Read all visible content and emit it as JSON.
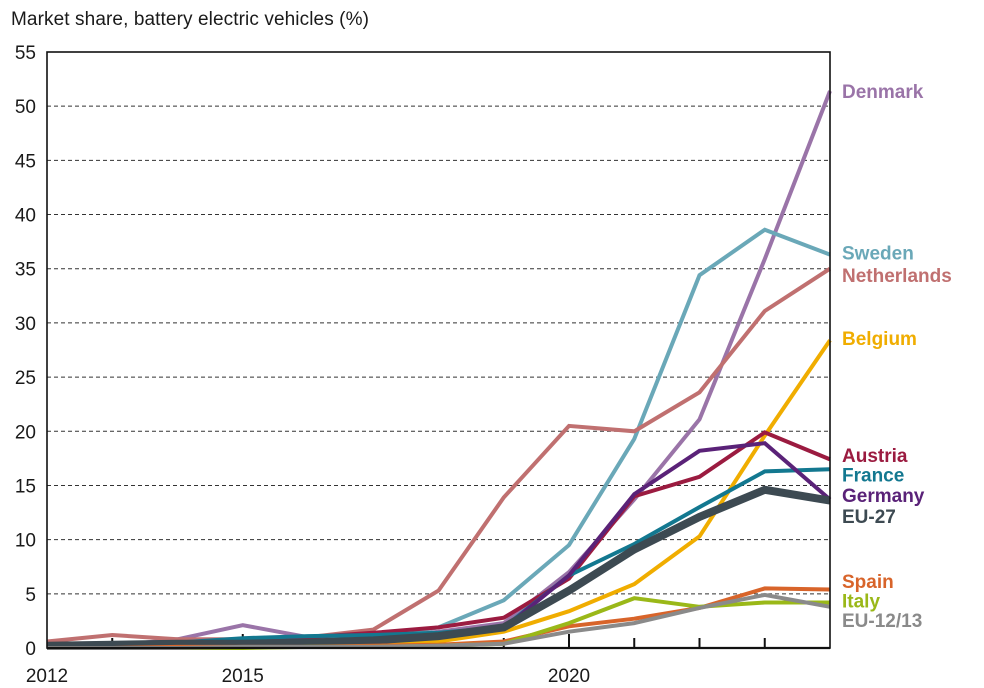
{
  "chart_data": {
    "type": "line",
    "title": "Market share, battery electric vehicles (%)",
    "xlabel": "",
    "ylabel": "",
    "xlim": [
      2012,
      2024
    ],
    "ylim": [
      0,
      55
    ],
    "grid": true,
    "yticks": [
      0,
      5,
      10,
      15,
      20,
      25,
      30,
      35,
      40,
      45,
      50,
      55
    ],
    "xticks": [
      2012,
      2013,
      2014,
      2015,
      2016,
      2017,
      2018,
      2019,
      2020,
      2021,
      2022,
      2023,
      2024
    ],
    "xtick_labels": [
      {
        "value": 2012,
        "label": "2012"
      },
      {
        "value": 2015,
        "label": "2015"
      },
      {
        "value": 2020,
        "label": "2020"
      }
    ],
    "legend_placement": "right (direct labels at line ends)",
    "x": [
      2012,
      2013,
      2014,
      2015,
      2016,
      2017,
      2018,
      2019,
      2020,
      2021,
      2022,
      2023,
      2024
    ],
    "series": [
      {
        "name": "Denmark",
        "color": "#9a74a8",
        "width": "normal",
        "values": [
          0.2,
          0.2,
          0.8,
          2.1,
          1.0,
          0.8,
          1.5,
          2.3,
          7.0,
          13.7,
          21.1,
          35.9,
          51.4
        ]
      },
      {
        "name": "Sweden",
        "color": "#6aa8b8",
        "width": "normal",
        "values": [
          0.1,
          0.2,
          0.3,
          0.8,
          0.8,
          1.0,
          1.9,
          4.4,
          9.5,
          19.3,
          34.4,
          38.6,
          36.3
        ]
      },
      {
        "name": "Netherlands",
        "color": "#c07070",
        "width": "normal",
        "values": [
          0.6,
          1.2,
          0.8,
          0.8,
          1.0,
          1.7,
          5.3,
          13.9,
          20.5,
          20.0,
          23.6,
          31.1,
          35.0
        ]
      },
      {
        "name": "Belgium",
        "color": "#f0ad00",
        "width": "normal",
        "values": [
          0.0,
          0.1,
          0.1,
          0.1,
          0.2,
          0.3,
          0.6,
          1.5,
          3.4,
          5.9,
          10.3,
          19.6,
          28.4
        ]
      },
      {
        "name": "Austria",
        "color": "#9b1b40",
        "width": "normal",
        "values": [
          0.1,
          0.1,
          0.3,
          0.5,
          1.0,
          1.4,
          1.9,
          2.8,
          6.4,
          14.0,
          15.8,
          19.9,
          17.4
        ]
      },
      {
        "name": "France",
        "color": "#137890",
        "width": "normal",
        "values": [
          0.3,
          0.4,
          0.5,
          0.9,
          1.1,
          1.2,
          1.4,
          1.9,
          6.7,
          9.6,
          13.0,
          16.3,
          16.5
        ]
      },
      {
        "name": "Germany",
        "color": "#5a2278",
        "width": "normal",
        "values": [
          0.1,
          0.2,
          0.3,
          0.4,
          0.4,
          0.8,
          1.0,
          1.8,
          6.7,
          14.2,
          18.2,
          18.9,
          13.7
        ]
      },
      {
        "name": "EU-27",
        "color": "#3d4a52",
        "width": "thick",
        "values": [
          0.2,
          0.3,
          0.4,
          0.4,
          0.5,
          0.7,
          1.1,
          1.9,
          5.3,
          9.1,
          12.1,
          14.6,
          13.6
        ]
      },
      {
        "name": "Spain",
        "color": "#d8642a",
        "width": "normal",
        "values": [
          0.0,
          0.0,
          0.1,
          0.1,
          0.1,
          0.2,
          0.3,
          0.6,
          2.0,
          2.7,
          3.7,
          5.5,
          5.4
        ]
      },
      {
        "name": "Italy",
        "color": "#9ab818",
        "width": "normal",
        "values": [
          0.0,
          0.0,
          0.0,
          0.0,
          0.1,
          0.1,
          0.2,
          0.4,
          2.3,
          4.6,
          3.8,
          4.2,
          4.2
        ]
      },
      {
        "name": "EU-12/13",
        "color": "#8a8a8a",
        "width": "normal",
        "values": [
          0.0,
          0.0,
          0.0,
          0.1,
          0.1,
          0.1,
          0.2,
          0.4,
          1.5,
          2.3,
          3.7,
          4.9,
          3.8
        ]
      }
    ],
    "labels": [
      {
        "series": "Denmark",
        "text": "Denmark",
        "color": "#9a74a8",
        "anchor_value": 51.4
      },
      {
        "series": "Sweden",
        "text": "Sweden",
        "color": "#6aa8b8",
        "anchor_value": 36.5
      },
      {
        "series": "Netherlands",
        "text": "Netherlands",
        "color": "#c07070",
        "anchor_value": 34.4
      },
      {
        "series": "Belgium",
        "text": "Belgium",
        "color": "#f0ad00",
        "anchor_value": 28.6
      },
      {
        "series": "Austria",
        "text": "Austria",
        "color": "#9b1b40",
        "anchor_value": 17.8
      },
      {
        "series": "France",
        "text": "France",
        "color": "#137890",
        "anchor_value": 16.0
      },
      {
        "series": "Germany",
        "text": "Germany",
        "color": "#5a2278",
        "anchor_value": 14.1
      },
      {
        "series": "EU-27",
        "text": "EU-27",
        "color": "#3d4a52",
        "anchor_value": 12.2
      },
      {
        "series": "Spain",
        "text": "Spain",
        "color": "#d8642a",
        "anchor_value": 6.2
      },
      {
        "series": "Italy",
        "text": "Italy",
        "color": "#9ab818",
        "anchor_value": 4.4
      },
      {
        "series": "EU-12/13",
        "text": "EU-12/13",
        "color": "#8a8a8a",
        "anchor_value": 2.6
      }
    ]
  }
}
